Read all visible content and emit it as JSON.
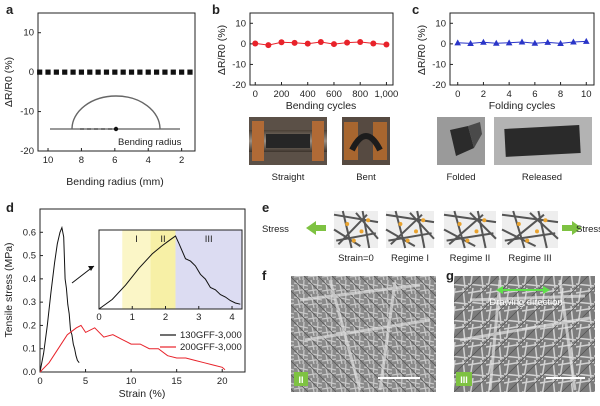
{
  "panels": {
    "a": "a",
    "b": "b",
    "c": "c",
    "d": "d",
    "e": "e",
    "f": "f",
    "g": "g"
  },
  "colors": {
    "red": "#e8222a",
    "blue": "#2a35c8",
    "black": "#111111",
    "green": "#7ec242",
    "orange": "#e9a32f",
    "region_I": "#fbf6c7",
    "region_II": "#f7f0a6",
    "region_III": "#dcdcf2"
  },
  "chart_data": [
    {
      "id": "a",
      "type": "scatter",
      "ylabel": "ΔR/R0 (%)",
      "xlabel": "Bending radius (mm)",
      "xlim": [
        10.6,
        1.2
      ],
      "ylim": [
        -20,
        15
      ],
      "xticks": [
        10,
        8,
        6,
        4,
        2
      ],
      "yticks": [
        -20,
        -10,
        0,
        10
      ],
      "x": [
        10.5,
        10,
        9.5,
        9,
        8.5,
        8,
        7.5,
        7,
        6.5,
        6,
        5.5,
        5,
        4.5,
        4,
        3.5,
        3,
        2.5,
        2,
        1.5
      ],
      "y": [
        0,
        0,
        0,
        0,
        0,
        0,
        0,
        0,
        0,
        0,
        0,
        0,
        0,
        0,
        0,
        0,
        0,
        0,
        0
      ],
      "marker": "square",
      "inset_label": "Bending radius"
    },
    {
      "id": "b",
      "type": "line",
      "ylabel": "ΔR/R0 (%)",
      "xlabel": "Bending cycles",
      "xlim": [
        -40,
        1050
      ],
      "ylim": [
        -20,
        15
      ],
      "xticks": [
        0,
        200,
        400,
        600,
        800,
        "1,000"
      ],
      "xtick_values": [
        0,
        200,
        400,
        600,
        800,
        1000
      ],
      "yticks": [
        -20,
        -10,
        0,
        10
      ],
      "x": [
        0,
        100,
        200,
        300,
        400,
        500,
        600,
        700,
        800,
        900,
        1000
      ],
      "y": [
        0.2,
        -0.6,
        0.8,
        0.5,
        0.1,
        0.9,
        -0.1,
        0.6,
        0.9,
        0.2,
        -0.3
      ],
      "color": "#e8222a",
      "photo_labels": [
        "Straight",
        "Bent"
      ]
    },
    {
      "id": "c",
      "type": "line",
      "ylabel": "ΔR/R0 (%)",
      "xlabel": "Folding cycles",
      "xlim": [
        -0.6,
        10.6
      ],
      "ylim": [
        -20,
        15
      ],
      "xticks": [
        0,
        2,
        4,
        6,
        8,
        10
      ],
      "yticks": [
        -20,
        -10,
        0,
        10
      ],
      "x": [
        0,
        1,
        2,
        3,
        4,
        5,
        6,
        7,
        8,
        9,
        10
      ],
      "y": [
        0.5,
        0.2,
        0.8,
        0.3,
        0.5,
        0.9,
        0.3,
        0.7,
        0.2,
        0.9,
        1.2
      ],
      "color": "#2a35c8",
      "marker": "triangle",
      "photo_labels": [
        "Folded",
        "Released"
      ]
    },
    {
      "id": "d",
      "type": "line",
      "ylabel": "Tensile stress (MPa)",
      "xlabel": "Strain (%)",
      "xlim": [
        0,
        22.5
      ],
      "ylim": [
        0,
        0.7
      ],
      "xticks": [
        0,
        5,
        10,
        15,
        20
      ],
      "yticks": [
        0.0,
        0.1,
        0.2,
        0.3,
        0.4,
        0.5,
        0.6
      ],
      "series": [
        {
          "name": "130GFF-3,000",
          "color": "#111111",
          "x": [
            0,
            0.4,
            0.8,
            1.2,
            1.6,
            1.9,
            2.2,
            2.4,
            2.6,
            2.75,
            2.9,
            3.05,
            3.2,
            3.35,
            3.5,
            3.65,
            3.8,
            3.95,
            4.1,
            4.3
          ],
          "y": [
            0,
            0.08,
            0.2,
            0.34,
            0.47,
            0.55,
            0.6,
            0.62,
            0.58,
            0.4,
            0.36,
            0.29,
            0.25,
            0.18,
            0.16,
            0.12,
            0.1,
            0.07,
            0.05,
            0.04
          ]
        },
        {
          "name": "200GFF-3,000",
          "color": "#e8222a",
          "x": [
            0,
            1,
            2,
            3,
            4,
            4.5,
            5,
            6,
            7,
            8,
            9,
            10,
            11,
            12,
            13,
            14,
            15,
            16,
            17,
            18,
            19,
            20,
            20.3
          ],
          "y": [
            0,
            0.04,
            0.1,
            0.16,
            0.19,
            0.2,
            0.17,
            0.19,
            0.15,
            0.16,
            0.14,
            0.12,
            0.12,
            0.1,
            0.1,
            0.07,
            0.06,
            0.06,
            0.05,
            0.04,
            0.03,
            0.02,
            0.01
          ]
        }
      ],
      "legend": "lower-right",
      "inset": {
        "type": "line",
        "xlim": [
          0,
          4.3
        ],
        "ylim": [
          0,
          0.66
        ],
        "xticks": [
          0,
          1,
          2,
          3,
          4
        ],
        "regions": [
          {
            "label": "I",
            "from": 0.7,
            "to": 1.55
          },
          {
            "label": "II",
            "from": 1.55,
            "to": 2.3
          },
          {
            "label": "III",
            "from": 2.3,
            "to": 4.3
          }
        ],
        "x": [
          0,
          0.4,
          0.8,
          1.2,
          1.6,
          1.9,
          2.1,
          2.25,
          2.3,
          2.4,
          2.6,
          2.75,
          2.9,
          3.05,
          3.2,
          3.35,
          3.5,
          3.65,
          3.8,
          3.95,
          4.1,
          4.25
        ],
        "y": [
          0,
          0.08,
          0.2,
          0.34,
          0.46,
          0.53,
          0.57,
          0.6,
          0.61,
          0.55,
          0.42,
          0.4,
          0.36,
          0.29,
          0.25,
          0.18,
          0.16,
          0.12,
          0.1,
          0.07,
          0.05,
          0.04
        ]
      }
    }
  ],
  "panel_e": {
    "stress_left": "Stress",
    "stress_right": "Stress",
    "labels": [
      "Strain=0",
      "Regime I",
      "Regime II",
      "Regime III"
    ]
  },
  "panel_f": {
    "badge": "II"
  },
  "panel_g": {
    "badge": "III",
    "caption": "Drawing direction"
  }
}
